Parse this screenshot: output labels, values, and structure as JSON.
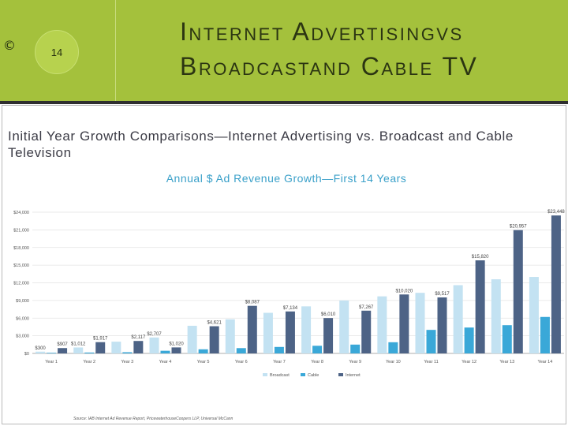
{
  "slide": {
    "copyright": "©",
    "page_number": "14",
    "title": "Internet Advertisingvs Broadcastand Cable TV"
  },
  "heading": "Initial Year Growth Comparisons—Internet Advertising vs. Broadcast and Cable Television",
  "source": "Source: IAB Internet Ad Revenue Report, PricewaterhouseCoopers LLP, Universal McCann",
  "colors": {
    "header_bg": "#a4c13c",
    "broadcast": "#c3e2f2",
    "cable": "#3aa8d8",
    "internet": "#4d6386",
    "title": "#3aa0c9"
  },
  "chart_data": {
    "type": "bar",
    "title": "Annual $ Ad Revenue Growth—First 14 Years",
    "xlabel": "",
    "ylabel": "",
    "ylim": [
      0,
      24000
    ],
    "yticks": [
      "$0",
      "$3,000",
      "$6,000",
      "$9,000",
      "$12,000",
      "$15,000",
      "$18,000",
      "$21,000",
      "$24,000"
    ],
    "grid": true,
    "legend": "bottom",
    "categories": [
      "Year 1",
      "Year 2",
      "Year 3",
      "Year 4",
      "Year 5",
      "Year 6",
      "Year 7",
      "Year 8",
      "Year 9",
      "Year 10",
      "Year 11",
      "Year 12",
      "Year 13",
      "Year 14"
    ],
    "series": [
      {
        "name": "Broadcast",
        "values": [
          300,
          1012,
          2000,
          2707,
          4700,
          5800,
          6900,
          8000,
          9000,
          9700,
          10300,
          11600,
          12600,
          13000
        ],
        "labels": [
          "$300",
          "$1,012",
          "",
          "$2,707",
          "",
          "",
          "",
          "",
          "",
          "",
          "",
          "",
          "",
          ""
        ]
      },
      {
        "name": "Cable",
        "values": [
          100,
          150,
          200,
          450,
          700,
          900,
          1100,
          1300,
          1500,
          1900,
          4000,
          4400,
          4800,
          6200
        ],
        "labels": [
          "",
          "",
          "",
          "",
          "",
          "",
          "",
          "",
          "",
          "",
          "",
          "",
          "",
          ""
        ]
      },
      {
        "name": "Internet",
        "values": [
          907,
          1917,
          2117,
          1020,
          4621,
          8087,
          7134,
          6010,
          7267,
          10020,
          9517,
          15820,
          20957,
          23448
        ],
        "labels": [
          "$907",
          "$1,917",
          "$2,117",
          "$1,020",
          "$4,621",
          "$8,087",
          "$7,134",
          "$6,010",
          "$7,267",
          "$10,020",
          "$9,517",
          "$15,820",
          "$20,957",
          "$23,448"
        ]
      }
    ]
  }
}
